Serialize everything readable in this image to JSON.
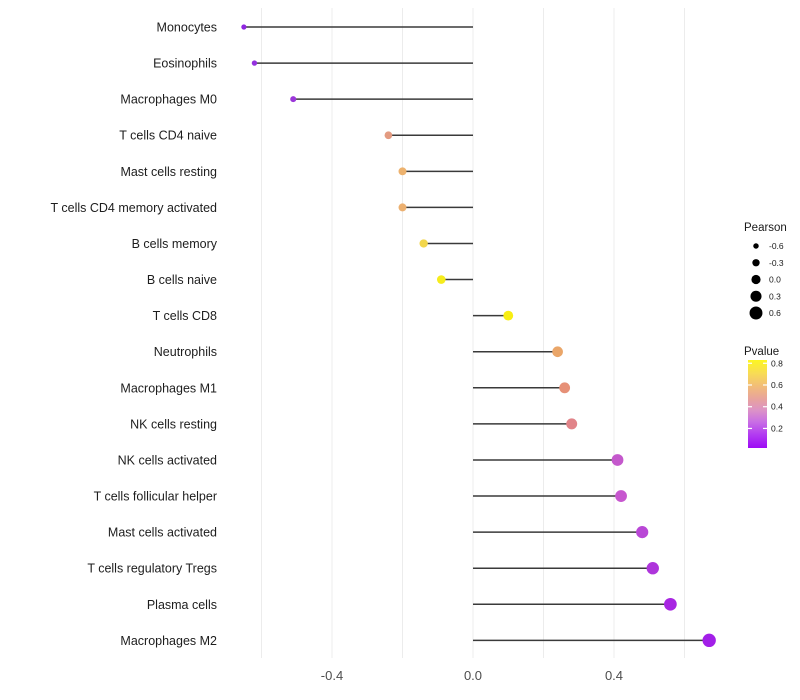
{
  "chart_data": {
    "type": "scatter",
    "subtype": "horizontal-lollipop",
    "title": "",
    "xlabel": "",
    "ylabel": "",
    "xlim": [
      -0.72,
      0.76
    ],
    "x_tick_values": [
      -0.4,
      0.0,
      0.4
    ],
    "x_tick_labels": [
      "-0.4",
      "0.0",
      "0.4"
    ],
    "grid_values": [
      -0.6,
      -0.4,
      -0.2,
      0.0,
      0.2,
      0.4,
      0.6
    ],
    "grid_on": true,
    "categories": [
      "Monocytes",
      "Eosinophils",
      "Macrophages M0",
      "T cells CD4 naive",
      "Mast cells resting",
      "T cells CD4 memory activated",
      "B cells memory",
      "B cells naive",
      "T cells CD8",
      "Neutrophils",
      "Macrophages M1",
      "NK cells resting",
      "NK cells activated",
      "T cells follicular helper",
      "Mast cells activated",
      "T cells regulatory  Tregs",
      "Plasma cells",
      "Macrophages M2"
    ],
    "series": [
      {
        "name": "Pearson",
        "values": [
          -0.65,
          -0.62,
          -0.51,
          -0.24,
          -0.2,
          -0.2,
          -0.14,
          -0.09,
          0.1,
          0.24,
          0.26,
          0.28,
          0.41,
          0.42,
          0.48,
          0.51,
          0.56,
          0.67
        ],
        "pvalues_estimated": [
          0.1,
          0.11,
          0.13,
          0.47,
          0.57,
          0.57,
          0.7,
          0.78,
          0.8,
          0.55,
          0.5,
          0.45,
          0.27,
          0.26,
          0.21,
          0.17,
          0.13,
          0.06
        ],
        "point_colors": [
          "#8F26DF",
          "#9430DE",
          "#9B36D9",
          "#E39B81",
          "#EDB26E",
          "#ECB070",
          "#F2D64B",
          "#F6EC1D",
          "#F8EE13",
          "#EAA669",
          "#E69077",
          "#E18489",
          "#C458CC",
          "#C757CF",
          "#B947D6",
          "#AE35DB",
          "#A826E2",
          "#A21FE8"
        ]
      }
    ],
    "legend": {
      "position": "right",
      "pearson": {
        "title": "Pearson",
        "values": [
          -0.6,
          -0.3,
          0.0,
          0.3,
          0.6
        ],
        "labels": [
          "-0.6",
          "-0.3",
          "0.0",
          "0.3",
          "0.6"
        ],
        "dot_color": "#000000"
      },
      "pvalue": {
        "title": "Pvalue",
        "tick_values": [
          0.8,
          0.6,
          0.4,
          0.2
        ],
        "tick_labels": [
          "0.8",
          "0.6",
          "0.4",
          "0.2"
        ],
        "bar_range": [
          0.02,
          0.83
        ],
        "gradient_stops": [
          {
            "at": 0.0,
            "color": "#FCF621"
          },
          {
            "at": 0.15,
            "color": "#F8DC55"
          },
          {
            "at": 0.3,
            "color": "#F2BC79"
          },
          {
            "at": 0.45,
            "color": "#E7A29F"
          },
          {
            "at": 0.57,
            "color": "#DC93C6"
          },
          {
            "at": 0.7,
            "color": "#C96FE4"
          },
          {
            "at": 0.85,
            "color": "#B23BF1"
          },
          {
            "at": 1.0,
            "color": "#9D0AF5"
          }
        ]
      }
    },
    "colors": {
      "stem": "#3a3a3a",
      "grid": "#ececec",
      "axis_tick_text": "#4d4d4d",
      "category_text": "#1d1d1d",
      "legend_text": "#1a1a1a"
    }
  }
}
